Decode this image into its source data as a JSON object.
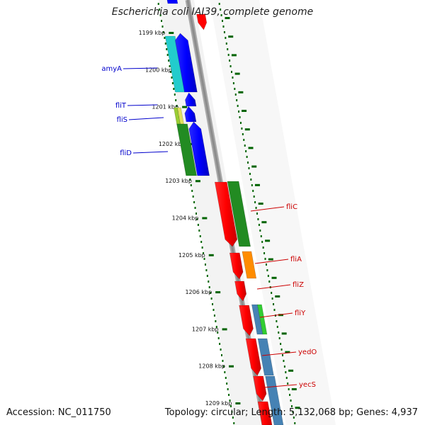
{
  "title": "Escherichia coli IAI39, complete genome",
  "footer": {
    "accession": "Accession: NC_011750",
    "genome_info": "Topology: circular; Length: 5,132,068 bp; Genes: 4,937"
  },
  "ruler": {
    "unit": "kbp",
    "ticks": [
      "1199 kbp",
      "1200 kbp",
      "1201 kbp",
      "1202 kbp",
      "1203 kbp",
      "1204 kbp",
      "1205 kbp",
      "1206 kbp",
      "1207 kbp",
      "1208 kbp",
      "1209 kbp"
    ]
  },
  "genes": [
    {
      "name": "amyA",
      "strand": "minus",
      "color": "#0000cc"
    },
    {
      "name": "fliT",
      "strand": "minus",
      "color": "#0000cc"
    },
    {
      "name": "fliS",
      "strand": "minus",
      "color": "#0000cc"
    },
    {
      "name": "fliD",
      "strand": "minus",
      "color": "#0000cc"
    },
    {
      "name": "fliC",
      "strand": "plus",
      "color": "#cc0000"
    },
    {
      "name": "fliA",
      "strand": "plus",
      "color": "#cc0000"
    },
    {
      "name": "fliZ",
      "strand": "plus",
      "color": "#cc0000"
    },
    {
      "name": "fliY",
      "strand": "plus",
      "color": "#cc0000"
    },
    {
      "name": "yedO",
      "strand": "plus",
      "color": "#cc0000"
    },
    {
      "name": "yecS",
      "strand": "plus",
      "color": "#cc0000"
    }
  ],
  "colors": {
    "minus_strand": "#0000ff",
    "plus_strand": "#ff0000",
    "backbone": "#8c8c8c",
    "ruler_ticks": "#006400",
    "cog_cyan": "#22cccc",
    "cog_green": "#228b22",
    "cog_yellowgreen": "#9acd32",
    "cog_orange": "#ff8c00",
    "cog_lime": "#32cd32",
    "cog_steelblue": "#4682b4",
    "cog_pink": "#ff7070"
  }
}
